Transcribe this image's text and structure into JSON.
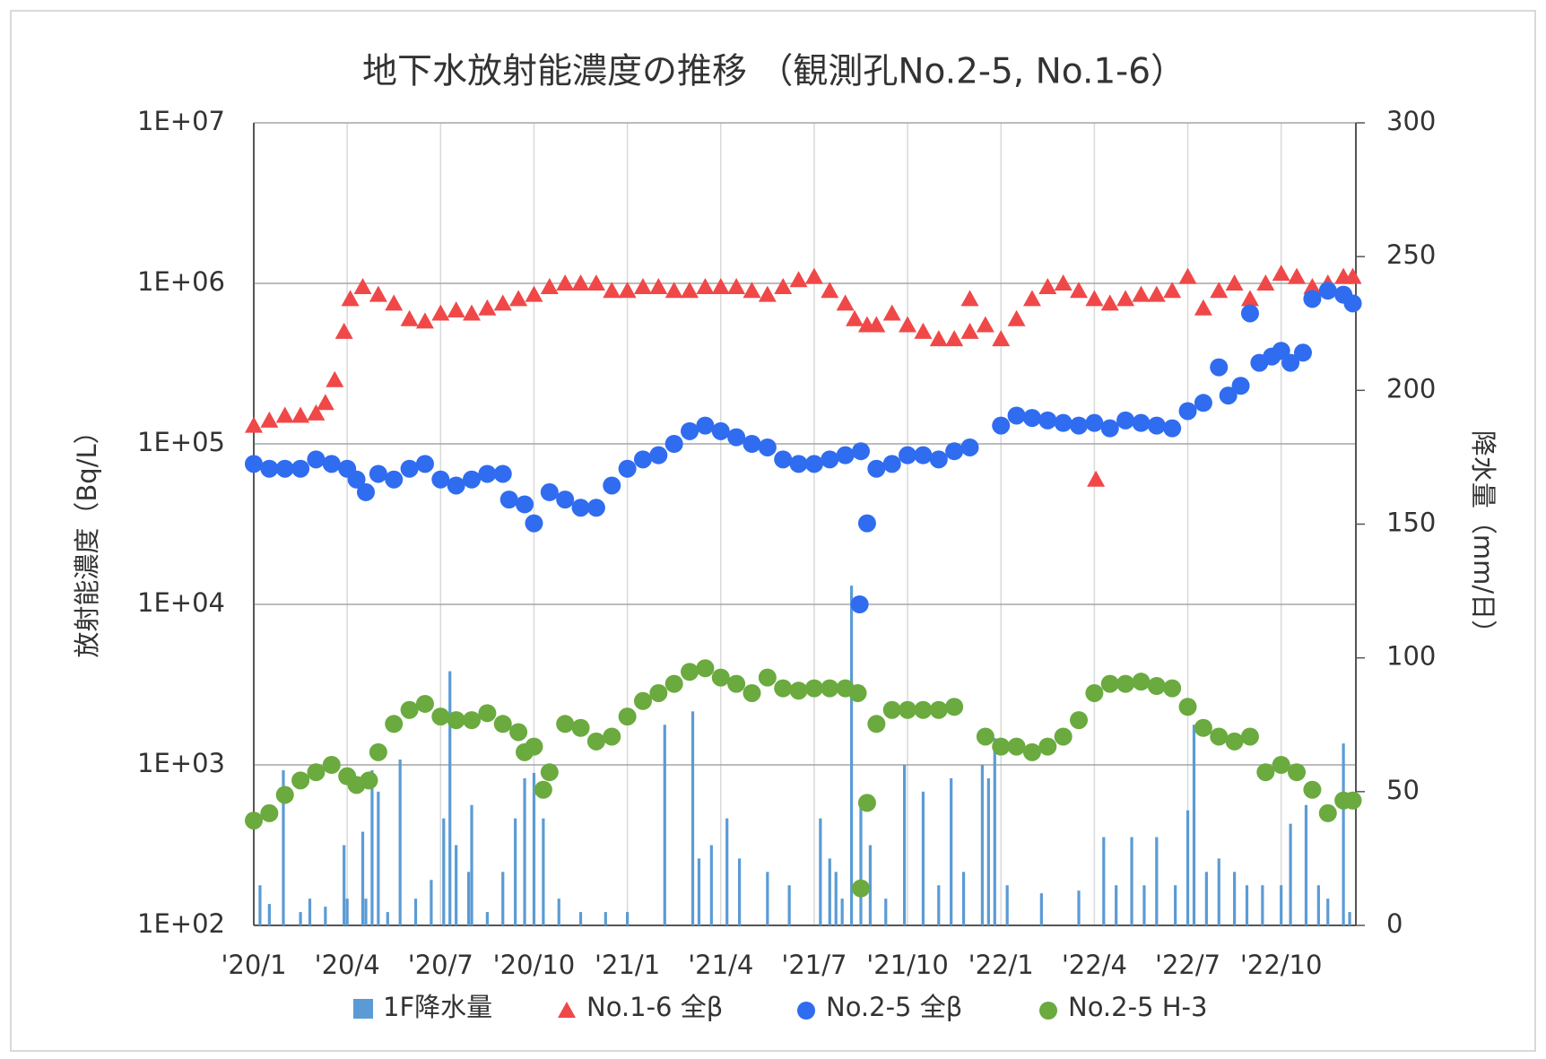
{
  "chart_data": {
    "type": "scatter",
    "title": "地下水放射能濃度の推移 （観測孔No.2-5, No.1-6）",
    "ylabel": "放射能濃度（Bq/L）",
    "y2label": "降水量（mm/日）",
    "log_y": true,
    "grid": true,
    "legend": "bottom",
    "xlim": [
      0,
      35.4
    ],
    "xticks": [
      {
        "value": 0,
        "label": "'20/1"
      },
      {
        "value": 3,
        "label": "'20/4"
      },
      {
        "value": 6,
        "label": "'20/7"
      },
      {
        "value": 9,
        "label": "'20/10"
      },
      {
        "value": 12,
        "label": "'21/1"
      },
      {
        "value": 15,
        "label": "'21/4"
      },
      {
        "value": 18,
        "label": "'21/7"
      },
      {
        "value": 21,
        "label": "'21/10"
      },
      {
        "value": 24,
        "label": "'22/1"
      },
      {
        "value": 27,
        "label": "'22/4"
      },
      {
        "value": 30,
        "label": "'22/7"
      },
      {
        "value": 33,
        "label": "'22/10"
      }
    ],
    "ylim": [
      100,
      10000000
    ],
    "yticks": [
      {
        "value": 100,
        "label": "1E+02"
      },
      {
        "value": 1000,
        "label": "1E+03"
      },
      {
        "value": 10000,
        "label": "1E+04"
      },
      {
        "value": 100000,
        "label": "1E+05"
      },
      {
        "value": 1000000,
        "label": "1E+06"
      },
      {
        "value": 10000000,
        "label": "1E+07"
      }
    ],
    "y2lim": [
      0,
      300
    ],
    "y2ticks": [
      0,
      50,
      100,
      150,
      200,
      250,
      300
    ],
    "series": [
      {
        "name": "1F降水量",
        "color": "#5b9bd5",
        "marker": "bar",
        "axis": "y2",
        "x": [
          0.2,
          0.5,
          0.95,
          1.5,
          1.8,
          2.3,
          2.9,
          3.0,
          3.5,
          3.6,
          3.8,
          4.0,
          4.3,
          4.7,
          5.2,
          5.7,
          6.1,
          6.3,
          6.5,
          6.9,
          7.0,
          7.5,
          8.0,
          8.4,
          8.7,
          9.0,
          9.3,
          9.8,
          10.5,
          11.3,
          12.0,
          13.2,
          14.1,
          14.3,
          14.7,
          15.2,
          15.6,
          16.5,
          17.2,
          18.2,
          18.5,
          18.7,
          18.9,
          19.2,
          19.5,
          19.8,
          20.3,
          20.9,
          21.5,
          22.0,
          22.4,
          22.8,
          23.4,
          23.6,
          23.8,
          24.2,
          25.3,
          26.5,
          27.3,
          27.7,
          28.2,
          28.6,
          29.0,
          29.6,
          30.0,
          30.2,
          30.6,
          31.0,
          31.5,
          31.9,
          32.4,
          33.0,
          33.3,
          33.8,
          34.2,
          34.5,
          35.0,
          35.2
        ],
        "values": [
          15,
          8,
          58,
          5,
          10,
          7,
          30,
          10,
          35,
          10,
          58,
          50,
          5,
          62,
          10,
          17,
          40,
          95,
          30,
          20,
          45,
          5,
          20,
          40,
          55,
          57,
          40,
          10,
          5,
          5,
          5,
          75,
          80,
          25,
          30,
          40,
          25,
          20,
          15,
          40,
          25,
          20,
          10,
          127,
          45,
          30,
          10,
          60,
          50,
          15,
          55,
          20,
          60,
          55,
          70,
          15,
          12,
          13,
          33,
          15,
          33,
          15,
          33,
          15,
          43,
          75,
          20,
          25,
          20,
          15,
          15,
          15,
          38,
          45,
          15,
          10,
          68,
          5
        ]
      },
      {
        "name": "No.1-6 全β",
        "color": "#f04848",
        "marker": "triangle",
        "x": [
          0,
          0.5,
          1,
          1.5,
          2,
          2.3,
          2.6,
          2.9,
          3.1,
          3.5,
          4,
          4.5,
          5,
          5.5,
          6,
          6.5,
          7,
          7.5,
          8,
          8.5,
          9,
          9.5,
          10,
          10.5,
          11,
          11.5,
          12,
          12.5,
          13,
          13.5,
          14,
          14.5,
          15,
          15.5,
          16,
          16.5,
          17,
          17.5,
          18,
          18.5,
          19,
          19.3,
          19.7,
          20,
          20.5,
          21,
          21.5,
          22,
          22.5,
          23,
          23.5,
          24,
          24.5,
          25,
          25.5,
          26,
          26.5,
          27,
          27.5,
          28,
          28.5,
          29,
          29.5,
          30,
          30.5,
          31,
          31.5,
          32,
          32.5,
          33,
          33.5,
          34,
          34.5,
          35,
          35.3,
          23.0,
          27.05
        ],
        "values": [
          130000,
          140000,
          150000,
          150000,
          155000,
          180000,
          250000,
          500000,
          800000,
          950000,
          850000,
          750000,
          600000,
          580000,
          650000,
          680000,
          650000,
          700000,
          750000,
          800000,
          850000,
          950000,
          1000000,
          1000000,
          1000000,
          900000,
          900000,
          950000,
          950000,
          900000,
          900000,
          950000,
          950000,
          950000,
          900000,
          850000,
          950000,
          1050000,
          1100000,
          900000,
          750000,
          600000,
          550000,
          550000,
          650000,
          550000,
          500000,
          450000,
          450000,
          500000,
          550000,
          450000,
          600000,
          800000,
          950000,
          1000000,
          900000,
          800000,
          750000,
          800000,
          850000,
          850000,
          900000,
          1100000,
          700000,
          900000,
          1000000,
          800000,
          1000000,
          1150000,
          1100000,
          950000,
          1000000,
          1100000,
          1100000,
          800000,
          60000
        ]
      },
      {
        "name": "No.2-5 全β",
        "color": "#2f6cf0",
        "marker": "circle",
        "x": [
          0,
          0.5,
          1,
          1.5,
          2,
          2.5,
          3,
          3.3,
          3.6,
          4,
          4.5,
          5,
          5.5,
          6,
          6.5,
          7,
          7.5,
          8,
          8.2,
          8.7,
          9,
          9.5,
          10,
          10.5,
          11,
          11.5,
          12,
          12.5,
          13,
          13.5,
          14,
          14.5,
          15,
          15.5,
          16,
          16.5,
          17,
          17.5,
          18,
          18.5,
          19,
          19.5,
          19.46,
          19.7,
          20,
          20.5,
          21,
          21.5,
          22,
          22.5,
          23,
          24,
          24.5,
          25,
          25.5,
          26,
          26.5,
          27,
          27.5,
          28,
          28.5,
          29,
          29.5,
          30,
          30.5,
          31,
          31.3,
          31.7,
          32,
          32.3,
          32.7,
          33,
          33.3,
          33.7,
          34,
          34.5,
          35,
          35.3
        ],
        "values": [
          75000,
          70000,
          70000,
          70000,
          80000,
          75000,
          70000,
          60000,
          50000,
          65000,
          60000,
          70000,
          75000,
          60000,
          55000,
          60000,
          65000,
          65000,
          45000,
          42000,
          32000,
          50000,
          45000,
          40000,
          40000,
          55000,
          70000,
          80000,
          85000,
          100000,
          120000,
          130000,
          120000,
          110000,
          100000,
          95000,
          80000,
          75000,
          75000,
          80000,
          85000,
          90000,
          10000,
          32000,
          70000,
          75000,
          85000,
          85000,
          80000,
          90000,
          95000,
          130000,
          150000,
          145000,
          140000,
          135000,
          130000,
          135000,
          125000,
          140000,
          135000,
          130000,
          125000,
          160000,
          180000,
          300000,
          200000,
          230000,
          650000,
          320000,
          350000,
          380000,
          320000,
          370000,
          800000,
          900000,
          850000,
          750000
        ]
      },
      {
        "name": "No.2-5 H-3",
        "color": "#6aaa3e",
        "marker": "circle",
        "x": [
          0,
          0.5,
          1,
          1.5,
          2,
          2.5,
          3,
          3.3,
          3.7,
          4,
          4.5,
          5,
          5.5,
          6,
          6.5,
          7,
          7.5,
          8,
          8.5,
          8.7,
          9,
          9.3,
          9.5,
          10,
          10.5,
          11,
          11.5,
          12,
          12.5,
          13,
          13.5,
          14,
          14.5,
          15,
          15.5,
          16,
          16.5,
          17,
          17.5,
          18,
          18.5,
          19,
          19.4,
          19.5,
          19.7,
          20,
          20.5,
          21,
          21.5,
          22,
          22.5,
          23.5,
          24,
          24.5,
          25,
          25.5,
          26,
          26.5,
          27,
          27.5,
          28,
          28.5,
          29,
          29.5,
          30,
          30.5,
          31,
          31.5,
          32,
          32.5,
          33,
          33.5,
          34,
          34.5,
          35,
          35.3
        ],
        "values": [
          450,
          500,
          650,
          800,
          900,
          1000,
          850,
          750,
          800,
          1200,
          1800,
          2200,
          2400,
          2000,
          1900,
          1900,
          2100,
          1800,
          1600,
          1200,
          1300,
          700,
          900,
          1800,
          1700,
          1400,
          1500,
          2000,
          2500,
          2800,
          3200,
          3800,
          4000,
          3500,
          3200,
          2800,
          3500,
          3000,
          2900,
          3000,
          3000,
          3000,
          2800,
          170,
          580,
          1800,
          2200,
          2200,
          2200,
          2200,
          2300,
          1500,
          1300,
          1300,
          1200,
          1300,
          1500,
          1900,
          2800,
          3200,
          3200,
          3300,
          3100,
          3000,
          2300,
          1700,
          1500,
          1400,
          1500,
          900,
          1000,
          900,
          700,
          500,
          600,
          600
        ]
      }
    ]
  }
}
